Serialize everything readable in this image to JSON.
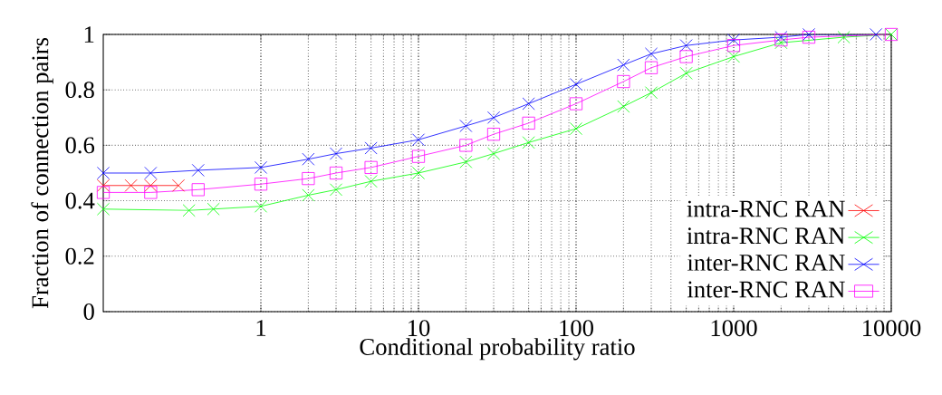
{
  "chart_data": {
    "type": "line",
    "xlabel": "Conditional probability ratio",
    "ylabel": "Fraction of connection pairs",
    "log": "x",
    "xlim": [
      0.1,
      10000
    ],
    "xticks": [
      1,
      10,
      100,
      1000,
      10000
    ],
    "ylim": [
      0,
      1
    ],
    "yticks": [
      0,
      0.2,
      0.4,
      0.6,
      0.8,
      1
    ],
    "grid": true,
    "legend": "bottom right",
    "series": [
      {
        "name": "intra-RNC RAN",
        "color": "#ff0000",
        "marker": "cross",
        "x": [
          0.1,
          0.15,
          0.2,
          0.3
        ],
        "values": [
          0.455,
          0.455,
          0.455,
          0.455
        ]
      },
      {
        "name": "intra-RNC RAN",
        "color": "#00ff00",
        "marker": "cross",
        "x": [
          0.1,
          0.35,
          0.5,
          1,
          2,
          3,
          5,
          10,
          20,
          30,
          50,
          100,
          200,
          300,
          500,
          1000,
          2000,
          5000,
          10000
        ],
        "values": [
          0.37,
          0.365,
          0.37,
          0.38,
          0.42,
          0.44,
          0.47,
          0.5,
          0.54,
          0.57,
          0.61,
          0.66,
          0.74,
          0.79,
          0.86,
          0.92,
          0.97,
          0.99,
          1.0
        ]
      },
      {
        "name": "inter-RNC RAN",
        "color": "#0000ff",
        "marker": "cross",
        "x": [
          0.1,
          0.2,
          0.4,
          1,
          2,
          3,
          5,
          10,
          20,
          30,
          50,
          100,
          200,
          300,
          500,
          1000,
          2000,
          3000,
          8000
        ],
        "values": [
          0.5,
          0.5,
          0.51,
          0.52,
          0.55,
          0.57,
          0.59,
          0.62,
          0.67,
          0.7,
          0.75,
          0.82,
          0.89,
          0.93,
          0.96,
          0.98,
          0.99,
          1.0,
          1.0
        ]
      },
      {
        "name": "inter-RNC RAN",
        "color": "#ff00ff",
        "marker": "square",
        "x": [
          0.1,
          0.2,
          0.4,
          1,
          2,
          3,
          5,
          10,
          20,
          30,
          50,
          100,
          200,
          300,
          500,
          1000,
          2000,
          3000,
          10000
        ],
        "values": [
          0.43,
          0.43,
          0.44,
          0.46,
          0.48,
          0.5,
          0.52,
          0.56,
          0.6,
          0.64,
          0.68,
          0.75,
          0.83,
          0.88,
          0.92,
          0.96,
          0.98,
          0.99,
          1.0
        ]
      }
    ]
  }
}
